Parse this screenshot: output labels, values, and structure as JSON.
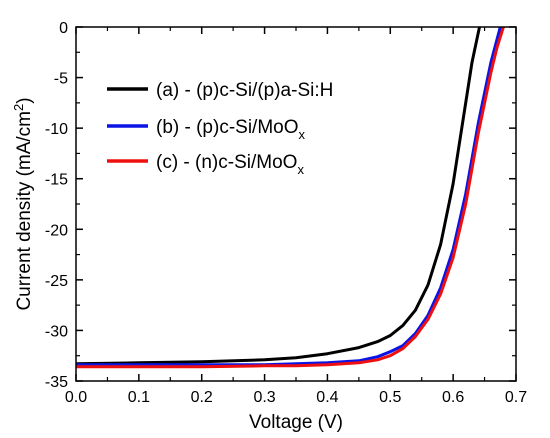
{
  "chart_data": {
    "type": "line",
    "title": "",
    "xlabel": "Voltage (V)",
    "ylabel": "Current density (mA/cm",
    "ylabel_sup": "2",
    "ylabel_close": ")",
    "xlim": [
      0.0,
      0.7
    ],
    "ylim": [
      -35,
      0
    ],
    "x_ticks": [
      0.0,
      0.1,
      0.2,
      0.3,
      0.4,
      0.5,
      0.6,
      0.7
    ],
    "x_tick_labels": [
      "0.0",
      "0.1",
      "0.2",
      "0.3",
      "0.4",
      "0.5",
      "0.6",
      "0.7"
    ],
    "y_ticks": [
      0,
      -5,
      -10,
      -15,
      -20,
      -25,
      -30,
      -35
    ],
    "y_tick_labels": [
      "0",
      "-5",
      "-10",
      "-15",
      "-20",
      "-25",
      "-30",
      "-35"
    ],
    "grid": false,
    "legend_position": "top-left",
    "series": [
      {
        "name": "(a) - (p)c-Si/(p)a-Si:H",
        "name_sub": "",
        "color": "#000000",
        "x": [
          0.0,
          0.1,
          0.2,
          0.3,
          0.35,
          0.4,
          0.45,
          0.48,
          0.5,
          0.52,
          0.54,
          0.56,
          0.58,
          0.6,
          0.61,
          0.62,
          0.63,
          0.642
        ],
        "y": [
          -33.3,
          -33.2,
          -33.1,
          -32.9,
          -32.7,
          -32.3,
          -31.7,
          -31.1,
          -30.5,
          -29.5,
          -28.0,
          -25.5,
          -21.5,
          -15.5,
          -11.5,
          -7.5,
          -3.5,
          0
        ]
      },
      {
        "name": "(b) - (p)c-Si/MoO",
        "name_sub": "x",
        "color": "#0a14e6",
        "x": [
          0.0,
          0.1,
          0.2,
          0.3,
          0.35,
          0.4,
          0.45,
          0.48,
          0.5,
          0.52,
          0.54,
          0.56,
          0.58,
          0.6,
          0.62,
          0.63,
          0.64,
          0.65,
          0.66,
          0.675
        ],
        "y": [
          -33.4,
          -33.4,
          -33.4,
          -33.4,
          -33.3,
          -33.2,
          -33.0,
          -32.6,
          -32.1,
          -31.5,
          -30.3,
          -28.5,
          -25.8,
          -22.0,
          -16.5,
          -13.0,
          -9.5,
          -6.5,
          -3.5,
          0
        ]
      },
      {
        "name": "(c) - (n)c-Si/MoO",
        "name_sub": "x",
        "color": "#ee1010",
        "x": [
          0.0,
          0.1,
          0.2,
          0.3,
          0.35,
          0.4,
          0.45,
          0.48,
          0.5,
          0.52,
          0.54,
          0.56,
          0.58,
          0.6,
          0.62,
          0.63,
          0.64,
          0.65,
          0.66,
          0.67,
          0.68
        ],
        "y": [
          -33.6,
          -33.6,
          -33.6,
          -33.5,
          -33.5,
          -33.4,
          -33.2,
          -32.9,
          -32.5,
          -31.8,
          -30.6,
          -28.9,
          -26.4,
          -22.8,
          -17.5,
          -14.0,
          -10.5,
          -7.5,
          -4.5,
          -2.0,
          0
        ]
      }
    ]
  }
}
